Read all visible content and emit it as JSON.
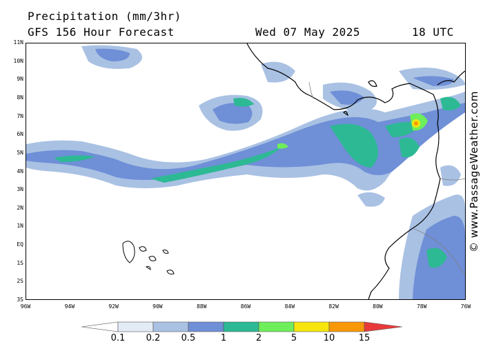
{
  "header": {
    "title": "Precipitation (mm/3hr)",
    "forecast": "GFS 156 Hour Forecast",
    "date": "Wed 07 May 2025",
    "time": "18 UTC"
  },
  "map": {
    "lat_labels": [
      "11N",
      "10N",
      "9N",
      "8N",
      "7N",
      "6N",
      "5N",
      "4N",
      "3N",
      "2N",
      "1N",
      "EQ",
      "1S",
      "2S",
      "3S"
    ],
    "lon_labels": [
      "96W",
      "94W",
      "92W",
      "90W",
      "88W",
      "86W",
      "84W",
      "82W",
      "80W",
      "78W",
      "76W"
    ],
    "lon_range": [
      -96,
      -76
    ],
    "lat_range": [
      -3,
      11
    ],
    "region": "Eastern Tropical Pacific / Central America / Colombia / Ecuador",
    "colors": {
      "coast": "#000000",
      "border": "#808080"
    }
  },
  "legend": {
    "labels": [
      "0.1",
      "0.2",
      "0.5",
      "1",
      "2",
      "5",
      "10",
      "15"
    ],
    "colors": [
      "#ffffff",
      "#e3ebf6",
      "#a9c1e3",
      "#6f8fd7",
      "#2db994",
      "#6eee5a",
      "#f7e60e",
      "#f99806",
      "#e93a3b"
    ]
  },
  "credit": "© www.PassageWeather.com"
}
